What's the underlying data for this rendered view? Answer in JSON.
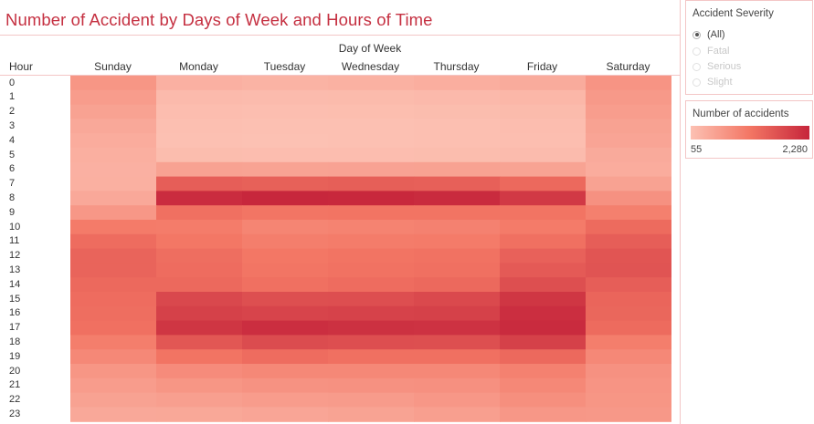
{
  "title": "Number of Accident by Days of Week and Hours of Time",
  "filter": {
    "title": "Accident Severity",
    "options": [
      {
        "label": "(All)",
        "selected": true
      },
      {
        "label": "Fatal",
        "selected": false
      },
      {
        "label": "Serious",
        "selected": false
      },
      {
        "label": "Slight",
        "selected": false
      }
    ]
  },
  "legend": {
    "title": "Number of accidents",
    "min_label": "55",
    "max_label": "2,280",
    "color_low": "#fcc1b3",
    "color_mid": "#f37664",
    "color_high": "#c6253b"
  },
  "chart_data": {
    "type": "heatmap",
    "title": "Number of Accident by Days of Week and Hours of Time",
    "column_group_label": "Day of Week",
    "row_header": "Hour",
    "columns": [
      "Sunday",
      "Monday",
      "Tuesday",
      "Wednesday",
      "Thursday",
      "Friday",
      "Saturday"
    ],
    "rows": [
      "0",
      "1",
      "2",
      "3",
      "4",
      "5",
      "6",
      "7",
      "8",
      "9",
      "10",
      "11",
      "12",
      "13",
      "14",
      "15",
      "16",
      "17",
      "18",
      "19",
      "20",
      "21",
      "22",
      "23"
    ],
    "value_range": [
      55,
      2280
    ],
    "values": [
      [
        700,
        300,
        270,
        290,
        330,
        380,
        720
      ],
      [
        610,
        160,
        140,
        150,
        170,
        210,
        650
      ],
      [
        520,
        110,
        100,
        105,
        120,
        150,
        590
      ],
      [
        420,
        80,
        65,
        70,
        85,
        110,
        520
      ],
      [
        360,
        75,
        60,
        65,
        80,
        100,
        480
      ],
      [
        320,
        120,
        110,
        115,
        120,
        140,
        400
      ],
      [
        300,
        520,
        500,
        510,
        520,
        500,
        360
      ],
      [
        310,
        1500,
        1460,
        1480,
        1470,
        1350,
        520
      ],
      [
        420,
        2180,
        2250,
        2240,
        2200,
        2000,
        760
      ],
      [
        680,
        1250,
        1180,
        1200,
        1190,
        1200,
        1020
      ],
      [
        1100,
        1080,
        950,
        980,
        1000,
        1100,
        1320
      ],
      [
        1300,
        1150,
        1050,
        1080,
        1100,
        1250,
        1500
      ],
      [
        1420,
        1280,
        1150,
        1200,
        1220,
        1450,
        1620
      ],
      [
        1420,
        1300,
        1180,
        1220,
        1250,
        1550,
        1640
      ],
      [
        1350,
        1350,
        1250,
        1300,
        1350,
        1700,
        1500
      ],
      [
        1300,
        1800,
        1700,
        1720,
        1780,
        2050,
        1400
      ],
      [
        1280,
        1900,
        1850,
        1880,
        1900,
        2150,
        1380
      ],
      [
        1250,
        2050,
        2150,
        2120,
        2100,
        2200,
        1320
      ],
      [
        1050,
        1600,
        1750,
        1720,
        1700,
        1900,
        1050
      ],
      [
        900,
        1200,
        1300,
        1250,
        1250,
        1350,
        900
      ],
      [
        700,
        850,
        900,
        900,
        900,
        1000,
        760
      ],
      [
        600,
        700,
        750,
        760,
        780,
        900,
        720
      ],
      [
        520,
        560,
        600,
        620,
        680,
        800,
        700
      ],
      [
        420,
        430,
        470,
        500,
        560,
        680,
        660
      ]
    ]
  }
}
